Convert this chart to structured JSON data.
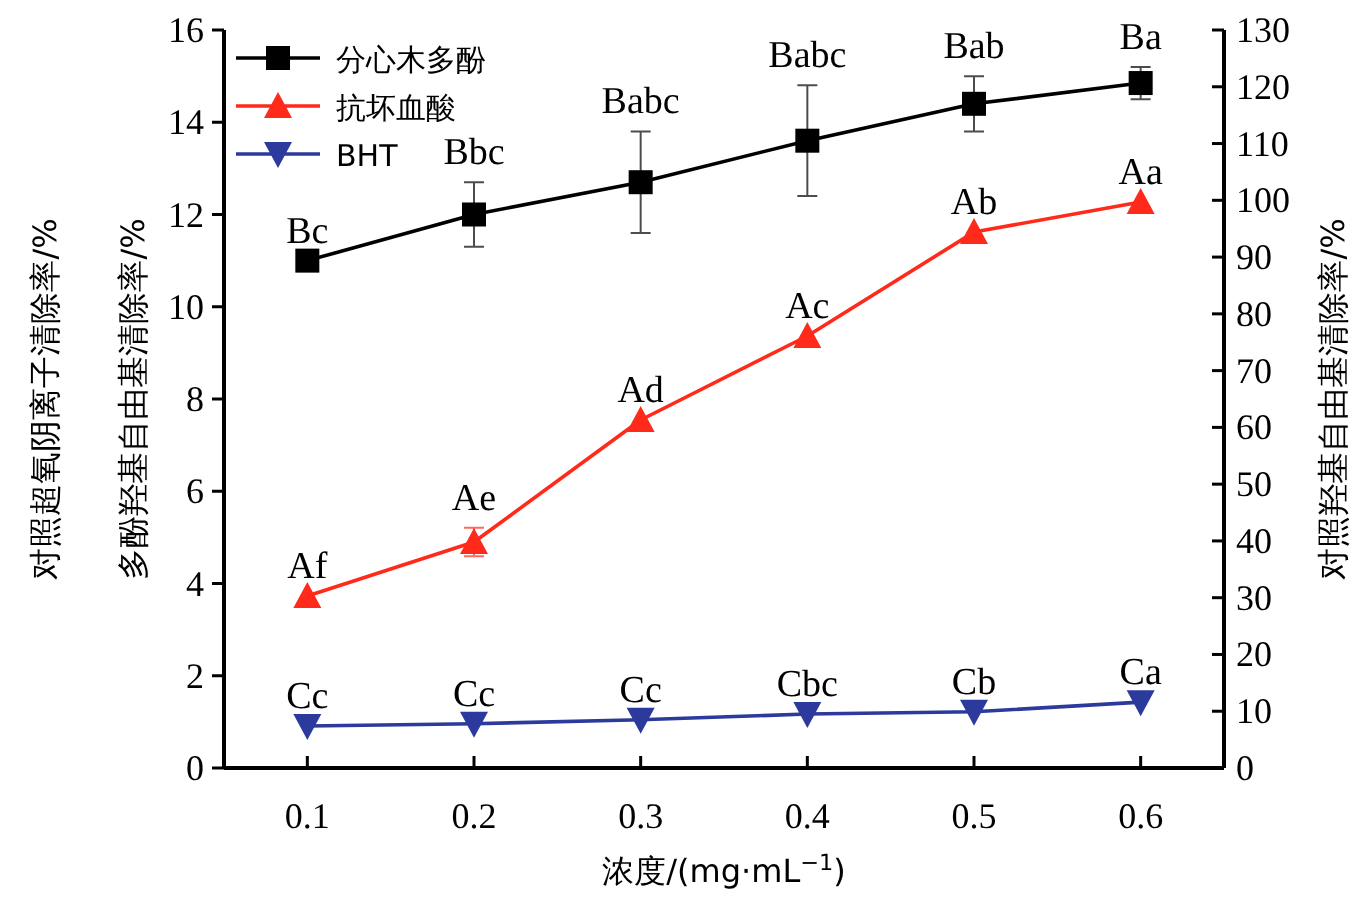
{
  "chart_data": {
    "type": "line",
    "xlabel": "浓度/(mg·mL$^{−1}$)",
    "ylabel": "多酚羟基自由基清除率/%",
    "y2label": "对照羟基自由基清除率/%",
    "annotations": [
      "对照超氧阴离子清除率/%"
    ],
    "x": [
      0.1,
      0.2,
      0.3,
      0.4,
      0.5,
      0.6
    ],
    "xlim": [
      0.05,
      0.65
    ],
    "xticks": [
      0.1,
      0.2,
      0.3,
      0.4,
      0.5,
      0.6
    ],
    "ylim": [
      0,
      16
    ],
    "yticks": [
      0,
      2,
      4,
      6,
      8,
      10,
      12,
      14,
      16
    ],
    "y2lim": [
      0,
      130
    ],
    "y2ticks": [
      0,
      10,
      20,
      30,
      40,
      50,
      60,
      70,
      80,
      90,
      100,
      110,
      120,
      130
    ],
    "legend": "top left",
    "grid": false,
    "series": [
      {
        "name": "分心木多酚",
        "color": "#000000",
        "marker": "square",
        "values": [
          11.0,
          12.0,
          12.7,
          13.6,
          14.4,
          14.85
        ],
        "errors": [
          null,
          0.7,
          1.1,
          1.2,
          0.6,
          0.35
        ],
        "value_labels": [
          "Bc",
          "Bbc",
          "Babc",
          "Babc",
          "Bab",
          "Ba"
        ]
      },
      {
        "name": "抗坏血酸",
        "color": "#ff2a1a",
        "marker": "triangle",
        "axis": "y2",
        "values": [
          30.3,
          39.8,
          61.3,
          76.1,
          94.4,
          99.7
        ],
        "errors": [
          null,
          2.5,
          null,
          null,
          null,
          null
        ],
        "value_labels": [
          "Af",
          "Ae",
          "Ad",
          "Ac",
          "Ab",
          "Aa"
        ]
      },
      {
        "name": "BHT",
        "color": "#2b3a9c",
        "marker": "triangle_down",
        "axis": "y2",
        "values": [
          7.4,
          7.8,
          8.5,
          9.5,
          9.9,
          11.6
        ],
        "value_labels": [
          "Cc",
          "Cc",
          "Cc",
          "Cbc",
          "Cb",
          "Ca"
        ]
      }
    ]
  }
}
